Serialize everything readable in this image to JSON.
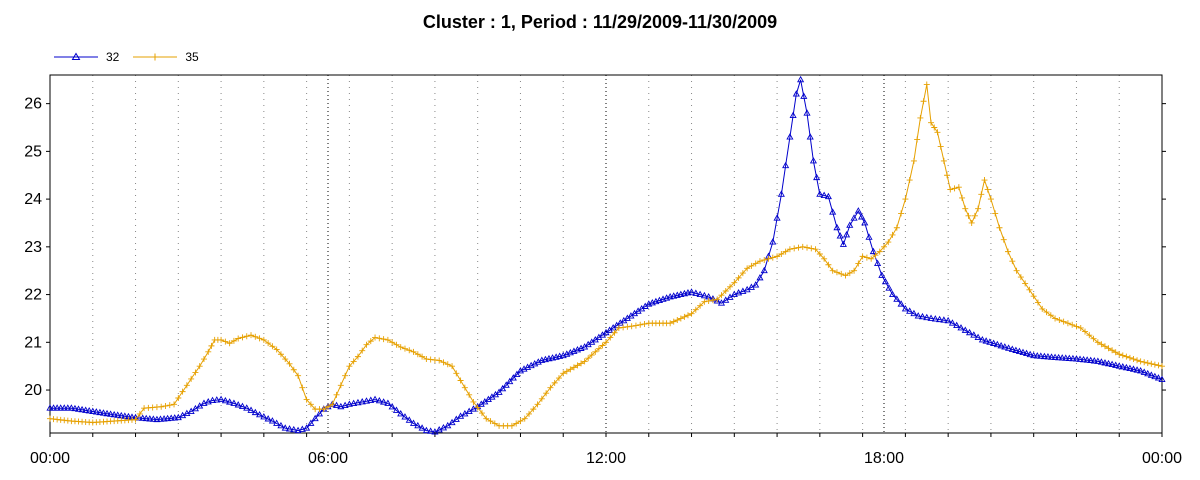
{
  "chart_data": {
    "type": "line",
    "title": "Cluster : 1, Period : 11/29/2009-11/30/2009",
    "xlabel": "",
    "ylabel": "",
    "x_unit": "hours",
    "xlim": [
      0,
      24
    ],
    "ylim": [
      19.1,
      26.6
    ],
    "x_ticks": [
      0,
      6,
      12,
      18,
      24
    ],
    "x_tick_labels": [
      "00:00",
      "06:00",
      "12:00",
      "18:00",
      "00:00"
    ],
    "y_ticks": [
      20,
      21,
      22,
      23,
      24,
      25,
      26
    ],
    "y_tick_labels": [
      "20",
      "21",
      "22",
      "23",
      "24",
      "25",
      "26"
    ],
    "grid": "vertical dotted",
    "legend_position": "top-left",
    "series": [
      {
        "name": "32",
        "color": "#0000cc",
        "marker": "triangle",
        "points": [
          [
            0.0,
            19.62
          ],
          [
            0.5,
            19.62
          ],
          [
            1.0,
            19.55
          ],
          [
            1.5,
            19.48
          ],
          [
            2.0,
            19.42
          ],
          [
            2.5,
            19.38
          ],
          [
            3.0,
            19.42
          ],
          [
            3.3,
            19.55
          ],
          [
            3.6,
            19.72
          ],
          [
            3.8,
            19.78
          ],
          [
            4.0,
            19.8
          ],
          [
            4.3,
            19.72
          ],
          [
            4.6,
            19.62
          ],
          [
            4.9,
            19.48
          ],
          [
            5.2,
            19.35
          ],
          [
            5.5,
            19.2
          ],
          [
            5.8,
            19.15
          ],
          [
            6.0,
            19.2
          ],
          [
            6.2,
            19.4
          ],
          [
            6.4,
            19.6
          ],
          [
            6.6,
            19.7
          ],
          [
            6.8,
            19.65
          ],
          [
            7.0,
            19.7
          ],
          [
            7.3,
            19.75
          ],
          [
            7.6,
            19.8
          ],
          [
            7.9,
            19.72
          ],
          [
            8.2,
            19.5
          ],
          [
            8.5,
            19.3
          ],
          [
            8.8,
            19.15
          ],
          [
            9.0,
            19.12
          ],
          [
            9.3,
            19.25
          ],
          [
            9.6,
            19.45
          ],
          [
            10.0,
            19.65
          ],
          [
            10.5,
            19.95
          ],
          [
            11.0,
            20.4
          ],
          [
            11.5,
            20.62
          ],
          [
            12.0,
            20.72
          ],
          [
            12.5,
            20.9
          ],
          [
            13.0,
            21.2
          ],
          [
            13.5,
            21.5
          ],
          [
            14.0,
            21.8
          ],
          [
            14.5,
            21.95
          ],
          [
            15.0,
            22.05
          ],
          [
            15.4,
            21.95
          ],
          [
            15.7,
            21.82
          ],
          [
            16.0,
            22.0
          ],
          [
            16.3,
            22.1
          ],
          [
            16.5,
            22.2
          ],
          [
            16.7,
            22.5
          ],
          [
            16.9,
            23.1
          ],
          [
            17.1,
            24.1
          ],
          [
            17.3,
            25.3
          ],
          [
            17.45,
            26.2
          ],
          [
            17.55,
            26.5
          ],
          [
            17.7,
            25.8
          ],
          [
            17.85,
            24.8
          ],
          [
            18.0,
            24.1
          ],
          [
            18.2,
            24.05
          ],
          [
            18.4,
            23.4
          ],
          [
            18.55,
            23.05
          ],
          [
            18.7,
            23.45
          ],
          [
            18.9,
            23.75
          ],
          [
            19.05,
            23.5
          ],
          [
            19.25,
            22.9
          ],
          [
            19.45,
            22.4
          ],
          [
            19.7,
            22.0
          ],
          [
            20.0,
            21.7
          ],
          [
            20.3,
            21.55
          ],
          [
            20.6,
            21.5
          ],
          [
            21.0,
            21.45
          ],
          [
            21.4,
            21.25
          ],
          [
            21.8,
            21.05
          ],
          [
            22.5,
            20.85
          ],
          [
            23.0,
            20.72
          ],
          [
            23.5,
            20.68
          ],
          [
            24.0,
            20.65
          ],
          [
            24.5,
            20.6
          ],
          [
            25.0,
            20.5
          ],
          [
            25.5,
            20.4
          ],
          [
            26.0,
            20.22
          ]
        ]
      },
      {
        "name": "35",
        "color": "#e6a000",
        "marker": "plus",
        "points": [
          [
            0.0,
            19.4
          ],
          [
            0.5,
            19.35
          ],
          [
            1.0,
            19.32
          ],
          [
            1.5,
            19.35
          ],
          [
            2.0,
            19.38
          ],
          [
            2.2,
            19.62
          ],
          [
            2.6,
            19.65
          ],
          [
            2.9,
            19.7
          ],
          [
            3.2,
            20.1
          ],
          [
            3.5,
            20.5
          ],
          [
            3.7,
            20.8
          ],
          [
            3.85,
            21.05
          ],
          [
            4.0,
            21.05
          ],
          [
            4.2,
            20.98
          ],
          [
            4.4,
            21.08
          ],
          [
            4.7,
            21.15
          ],
          [
            5.0,
            21.05
          ],
          [
            5.3,
            20.85
          ],
          [
            5.6,
            20.55
          ],
          [
            5.8,
            20.3
          ],
          [
            6.0,
            19.8
          ],
          [
            6.2,
            19.6
          ],
          [
            6.4,
            19.6
          ],
          [
            6.6,
            19.7
          ],
          [
            6.8,
            20.1
          ],
          [
            7.0,
            20.5
          ],
          [
            7.2,
            20.7
          ],
          [
            7.4,
            20.95
          ],
          [
            7.6,
            21.1
          ],
          [
            7.9,
            21.05
          ],
          [
            8.2,
            20.9
          ],
          [
            8.5,
            20.8
          ],
          [
            8.8,
            20.65
          ],
          [
            9.1,
            20.62
          ],
          [
            9.4,
            20.5
          ],
          [
            9.6,
            20.2
          ],
          [
            9.9,
            19.75
          ],
          [
            10.2,
            19.4
          ],
          [
            10.5,
            19.25
          ],
          [
            10.8,
            19.25
          ],
          [
            11.1,
            19.4
          ],
          [
            11.4,
            19.7
          ],
          [
            11.7,
            20.05
          ],
          [
            12.0,
            20.35
          ],
          [
            12.5,
            20.6
          ],
          [
            13.0,
            21.0
          ],
          [
            13.3,
            21.3
          ],
          [
            13.7,
            21.35
          ],
          [
            14.0,
            21.4
          ],
          [
            14.5,
            21.4
          ],
          [
            15.0,
            21.6
          ],
          [
            15.3,
            21.85
          ],
          [
            15.6,
            21.9
          ],
          [
            16.0,
            22.25
          ],
          [
            16.3,
            22.55
          ],
          [
            16.6,
            22.7
          ],
          [
            17.0,
            22.8
          ],
          [
            17.3,
            22.95
          ],
          [
            17.6,
            23.0
          ],
          [
            17.9,
            22.95
          ],
          [
            18.1,
            22.75
          ],
          [
            18.3,
            22.5
          ],
          [
            18.6,
            22.4
          ],
          [
            18.8,
            22.5
          ],
          [
            19.0,
            22.8
          ],
          [
            19.2,
            22.75
          ],
          [
            19.4,
            22.9
          ],
          [
            19.6,
            23.1
          ],
          [
            19.8,
            23.4
          ],
          [
            20.0,
            24.0
          ],
          [
            20.2,
            24.8
          ],
          [
            20.35,
            25.7
          ],
          [
            20.5,
            26.4
          ],
          [
            20.6,
            25.6
          ],
          [
            20.75,
            25.4
          ],
          [
            20.9,
            24.8
          ],
          [
            21.05,
            24.2
          ],
          [
            21.25,
            24.25
          ],
          [
            21.4,
            23.8
          ],
          [
            21.55,
            23.5
          ],
          [
            21.7,
            23.8
          ],
          [
            21.85,
            24.4
          ],
          [
            22.0,
            24.0
          ],
          [
            22.2,
            23.4
          ],
          [
            22.4,
            22.9
          ],
          [
            22.6,
            22.5
          ],
          [
            22.9,
            22.1
          ],
          [
            23.2,
            21.7
          ],
          [
            23.5,
            21.5
          ],
          [
            23.8,
            21.4
          ],
          [
            24.1,
            21.3
          ],
          [
            24.5,
            21.0
          ],
          [
            25.0,
            20.75
          ],
          [
            25.5,
            20.6
          ],
          [
            26.0,
            20.5
          ]
        ]
      }
    ]
  }
}
